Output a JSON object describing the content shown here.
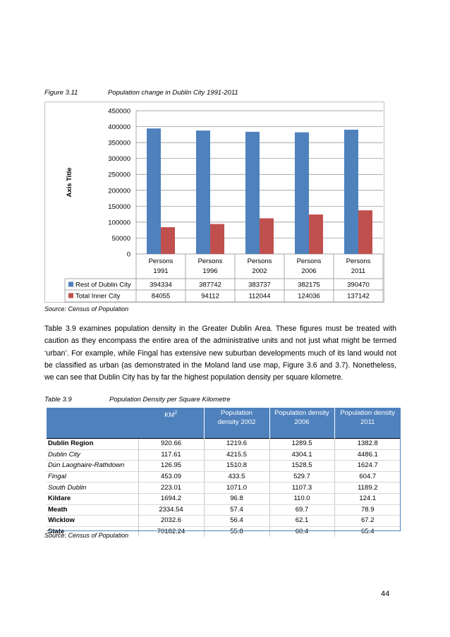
{
  "figure": {
    "label": "Figure 3.11",
    "title": "Population change in Dublin City 1991-2011",
    "source": "Source: Census of Population"
  },
  "chart_data": {
    "type": "bar",
    "categories": [
      [
        "Persons",
        "1991"
      ],
      [
        "Persons",
        "1996"
      ],
      [
        "Persons",
        "2002"
      ],
      [
        "Persons",
        "2006"
      ],
      [
        "Persons",
        "2011"
      ]
    ],
    "series": [
      {
        "name": "Rest of Dublin City",
        "values": [
          394334,
          387742,
          383737,
          382175,
          390470
        ],
        "color": "#4f81bd"
      },
      {
        "name": "Total Inner City",
        "values": [
          84055,
          94112,
          112044,
          124036,
          137142
        ],
        "color": "#c0504d"
      }
    ],
    "ylabel": "Axis Title",
    "ylim": [
      0,
      450000
    ],
    "yticks": [
      0,
      50000,
      100000,
      150000,
      200000,
      250000,
      300000,
      350000,
      400000,
      450000
    ],
    "grid": true,
    "legend": "data-table-below"
  },
  "paragraph": "Table 3.9 examines population density in the Greater Dublin Area. These figures must be treated with caution as they encompass the entire area of the administrative units and not just what might be termed ‘urban’.  For example, while Fingal has extensive new suburban developments much of its land would not be classified as urban (as demonstrated in the Moland land use map, Figure 3.6 and 3.7). Nonetheless, we can see that Dublin City has by far the highest population density per square kilometre.",
  "table": {
    "label": "Table 3.9",
    "title": "Population Density per Square Kilometre",
    "headers": {
      "km": "KM",
      "km_sup": "2",
      "d2002": [
        "Population",
        "density 2002"
      ],
      "d2006": [
        "Population density",
        "2006"
      ],
      "d2011": [
        "Population density",
        "2011"
      ]
    },
    "rows": [
      {
        "name": "Dublin Region",
        "km": "920.66",
        "d2002": "1219.6",
        "d2006": "1289.5",
        "d2011": "1382.8",
        "style": "bold"
      },
      {
        "name": "Dublin City",
        "km": "117.61",
        "d2002": "4215.5",
        "d2006": "4304.1",
        "d2011": "4486.1",
        "style": "ital"
      },
      {
        "name": "Dún Laoghaire-Rathdown",
        "km": "126.95",
        "d2002": "1510.8",
        "d2006": "1528.5",
        "d2011": "1624.7",
        "style": "ital"
      },
      {
        "name": "Fingal",
        "km": "453.09",
        "d2002": "433.5",
        "d2006": "529.7",
        "d2011": "604.7",
        "style": "ital"
      },
      {
        "name": "South Dublin",
        "km": "223.01",
        "d2002": "1071.0",
        "d2006": "1107.3",
        "d2011": "1189.2",
        "style": "ital"
      },
      {
        "name": "Kildare",
        "km": "1694.2",
        "d2002": "96.8",
        "d2006": "110.0",
        "d2011": "124.1",
        "style": "bold"
      },
      {
        "name": "Meath",
        "km": "2334.54",
        "d2002": "57.4",
        "d2006": "69.7",
        "d2011": "78.9",
        "style": "bold"
      },
      {
        "name": "Wicklow",
        "km": "2032.6",
        "d2002": "56.4",
        "d2006": "62.1",
        "d2011": "67.2",
        "style": "bold"
      },
      {
        "name": "State",
        "km": "70182.24",
        "d2002": "55.8",
        "d2006": "60.4",
        "d2011": "65.4",
        "style": "bold"
      }
    ],
    "source": "Source: Census of Population"
  },
  "page_number": "44"
}
